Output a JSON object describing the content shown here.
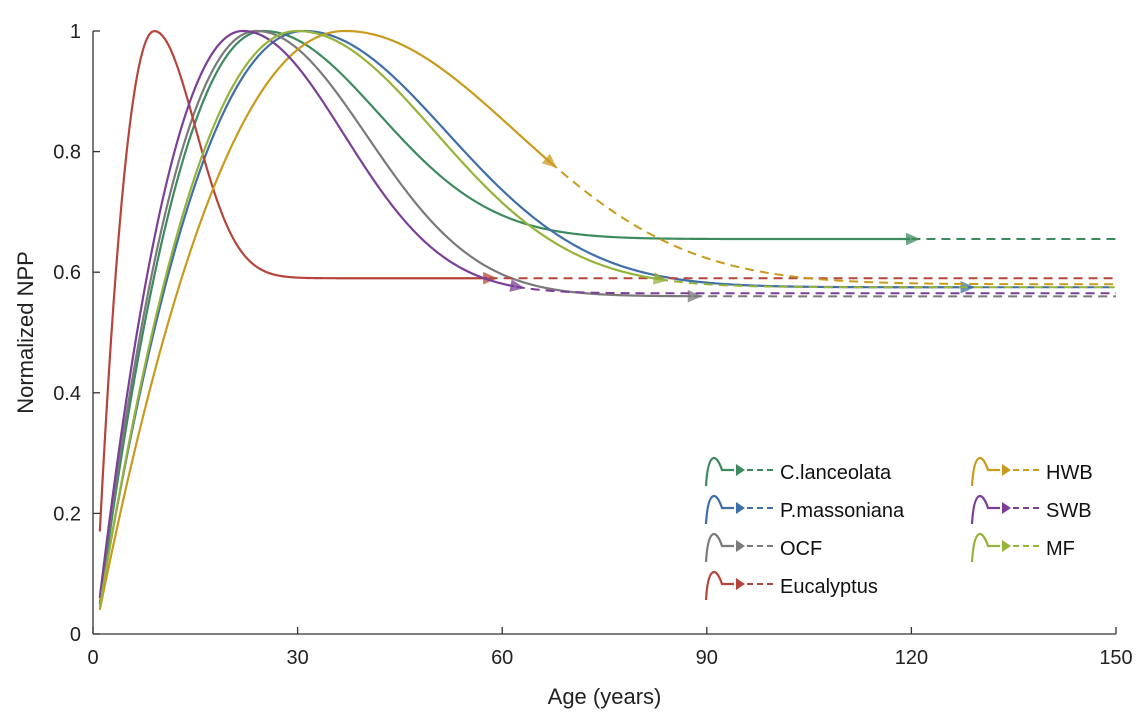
{
  "chart_data": {
    "type": "line",
    "xlabel": "Age (years)",
    "ylabel": "Normalized NPP",
    "xlim": [
      0,
      150
    ],
    "ylim": [
      0,
      1
    ],
    "xticks": [
      0,
      30,
      60,
      90,
      120,
      150
    ],
    "yticks": [
      0,
      0.2,
      0.4,
      0.6,
      0.8,
      1
    ],
    "ytick_labels": [
      "0",
      "0.2",
      "0.4",
      "0.6",
      "0.8",
      "1"
    ],
    "grid": false,
    "legend_position": "bottom-right",
    "legend_note": "solid line = observed range, arrow marks end, dashed line = extrapolation",
    "series": [
      {
        "name": "C.lanceolata",
        "color": "#3d8a5e",
        "peak_age": 25,
        "start_value": 0.05,
        "asymptote": 0.655,
        "observed_end": 120,
        "points": [
          [
            1,
            0.05
          ],
          [
            10,
            0.75
          ],
          [
            25,
            1.0
          ],
          [
            40,
            0.9
          ],
          [
            60,
            0.75
          ],
          [
            80,
            0.69
          ],
          [
            100,
            0.67
          ],
          [
            120,
            0.66
          ],
          [
            150,
            0.655
          ]
        ]
      },
      {
        "name": "P.massoniana",
        "color": "#3e6fa8",
        "peak_age": 31,
        "start_value": 0.05,
        "asymptote": 0.575,
        "observed_end": 128,
        "points": [
          [
            1,
            0.05
          ],
          [
            15,
            0.72
          ],
          [
            31,
            1.0
          ],
          [
            50,
            0.8
          ],
          [
            70,
            0.64
          ],
          [
            90,
            0.59
          ],
          [
            128,
            0.576
          ],
          [
            150,
            0.575
          ]
        ]
      },
      {
        "name": "OCF",
        "color": "#7a7a7a",
        "peak_age": 24,
        "start_value": 0.06,
        "asymptote": 0.56,
        "observed_end": 88,
        "points": [
          [
            1,
            0.06
          ],
          [
            12,
            0.75
          ],
          [
            24,
            1.0
          ],
          [
            40,
            0.8
          ],
          [
            60,
            0.63
          ],
          [
            88,
            0.575
          ],
          [
            150,
            0.56
          ]
        ]
      },
      {
        "name": "Eucalyptus",
        "color": "#b5453a",
        "peak_age": 9,
        "start_value": 0.17,
        "asymptote": 0.59,
        "observed_end": 58,
        "points": [
          [
            1,
            0.17
          ],
          [
            5,
            0.85
          ],
          [
            9,
            1.0
          ],
          [
            15,
            0.85
          ],
          [
            25,
            0.65
          ],
          [
            35,
            0.6
          ],
          [
            58,
            0.59
          ],
          [
            150,
            0.59
          ]
        ]
      },
      {
        "name": "HWB",
        "color": "#c99a1c",
        "peak_age": 37,
        "start_value": 0.04,
        "asymptote": 0.58,
        "observed_end": 67,
        "points": [
          [
            1,
            0.04
          ],
          [
            20,
            0.75
          ],
          [
            37,
            1.0
          ],
          [
            55,
            0.9
          ],
          [
            67,
            0.81
          ],
          [
            90,
            0.67
          ],
          [
            120,
            0.61
          ],
          [
            150,
            0.59
          ]
        ]
      },
      {
        "name": "SWB",
        "color": "#7b3f98",
        "peak_age": 22,
        "start_value": 0.06,
        "asymptote": 0.565,
        "observed_end": 62,
        "points": [
          [
            1,
            0.06
          ],
          [
            12,
            0.8
          ],
          [
            22,
            1.0
          ],
          [
            35,
            0.8
          ],
          [
            50,
            0.64
          ],
          [
            62,
            0.6
          ],
          [
            90,
            0.57
          ],
          [
            150,
            0.565
          ]
        ]
      },
      {
        "name": "MF",
        "color": "#96b33a",
        "peak_age": 30,
        "start_value": 0.045,
        "asymptote": 0.575,
        "observed_end": 83,
        "points": [
          [
            1,
            0.045
          ],
          [
            15,
            0.7
          ],
          [
            30,
            1.0
          ],
          [
            50,
            0.83
          ],
          [
            70,
            0.69
          ],
          [
            83,
            0.64
          ],
          [
            110,
            0.6
          ],
          [
            150,
            0.58
          ]
        ]
      }
    ],
    "legend_columns": [
      [
        "C.lanceolata",
        "P.massoniana",
        "OCF",
        "Eucalyptus"
      ],
      [
        "HWB",
        "SWB",
        "MF"
      ]
    ]
  }
}
